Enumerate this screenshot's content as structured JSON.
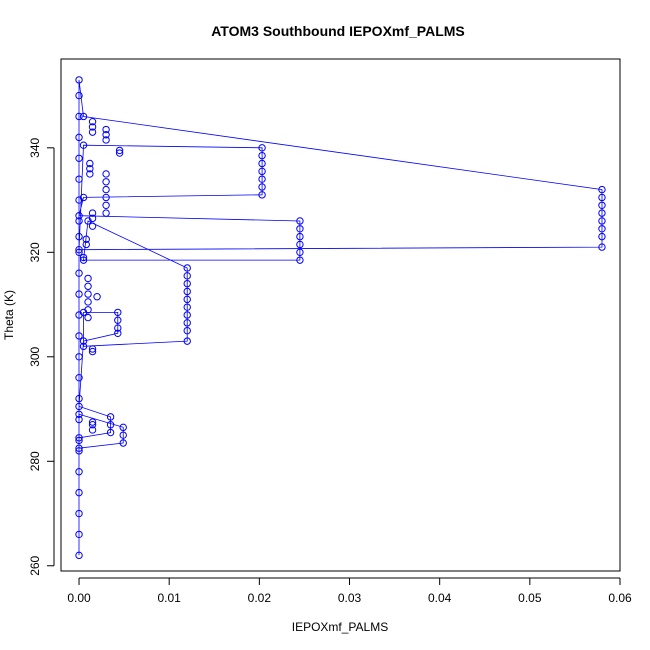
{
  "chart_data": {
    "type": "scatter",
    "title": "ATOM3 Southbound IEPOXmf_PALMS",
    "xlabel": "IEPOXmf_PALMS",
    "ylabel": "Theta (K)",
    "xlim": [
      -0.002,
      0.06
    ],
    "ylim": [
      259,
      357
    ],
    "x_ticks": [
      0.0,
      0.01,
      0.02,
      0.03,
      0.04,
      0.05,
      0.06
    ],
    "x_tick_labels": [
      "0.00",
      "0.01",
      "0.02",
      "0.03",
      "0.04",
      "0.05",
      "0.06"
    ],
    "y_ticks": [
      260,
      280,
      300,
      320,
      340
    ],
    "y_tick_labels": [
      "260",
      "280",
      "300",
      "320",
      "340"
    ],
    "grid": false,
    "legend": "none",
    "series": [
      {
        "color": "#0000ff",
        "marker": "open-circle",
        "line": "connected",
        "points": [
          [
            0.0,
            262
          ],
          [
            0.0,
            266
          ],
          [
            0.0,
            270
          ],
          [
            0.0,
            274
          ],
          [
            0.0,
            278
          ],
          [
            0.0,
            282
          ],
          [
            0.0,
            284
          ],
          [
            0.0,
            288
          ],
          [
            0.0,
            292
          ],
          [
            0.0,
            296
          ],
          [
            0.0,
            300
          ],
          [
            0.0,
            304
          ],
          [
            0.0,
            308
          ],
          [
            0.0,
            312
          ],
          [
            0.0,
            316
          ],
          [
            0.0,
            320
          ],
          [
            0.0,
            323
          ],
          [
            0.0,
            326
          ],
          [
            0.0,
            330
          ],
          [
            0.0,
            334
          ],
          [
            0.0,
            338
          ],
          [
            0.0,
            342
          ],
          [
            0.0,
            346
          ],
          [
            0.0,
            350
          ],
          [
            0.0,
            353
          ],
          [
            0.0005,
            346
          ],
          [
            0.058,
            332
          ],
          [
            0.058,
            330.5
          ],
          [
            0.058,
            329
          ],
          [
            0.058,
            327.5
          ],
          [
            0.058,
            326
          ],
          [
            0.058,
            324.5
          ],
          [
            0.058,
            323
          ],
          [
            0.058,
            321
          ],
          [
            0.0,
            320.5
          ],
          [
            0.0005,
            340.5
          ],
          [
            0.0203,
            340
          ],
          [
            0.0203,
            338.5
          ],
          [
            0.0203,
            337
          ],
          [
            0.0203,
            335.5
          ],
          [
            0.0203,
            334
          ],
          [
            0.0203,
            332.5
          ],
          [
            0.0203,
            331
          ],
          [
            0.0005,
            330.5
          ],
          [
            0.0,
            327
          ],
          [
            0.0245,
            326
          ],
          [
            0.0245,
            324.5
          ],
          [
            0.0245,
            323
          ],
          [
            0.0245,
            321.5
          ],
          [
            0.0245,
            320
          ],
          [
            0.0245,
            318.5
          ],
          [
            0.0005,
            318.5
          ],
          [
            0.001,
            326
          ],
          [
            0.012,
            317
          ],
          [
            0.012,
            315.5
          ],
          [
            0.012,
            314
          ],
          [
            0.012,
            312.5
          ],
          [
            0.012,
            311
          ],
          [
            0.012,
            309.5
          ],
          [
            0.012,
            308
          ],
          [
            0.012,
            306.5
          ],
          [
            0.012,
            305
          ],
          [
            0.012,
            303
          ],
          [
            0.0005,
            302
          ],
          [
            0.0005,
            308.5
          ],
          [
            0.0043,
            308.5
          ],
          [
            0.0043,
            307
          ],
          [
            0.0043,
            305.5
          ],
          [
            0.0043,
            304.5
          ],
          [
            0.0005,
            303
          ],
          [
            0.0,
            290.5
          ],
          [
            0.0035,
            288.5
          ],
          [
            0.0035,
            287
          ],
          [
            0.0035,
            285.5
          ],
          [
            0.0,
            284.5
          ],
          [
            0.0,
            282.5
          ],
          [
            0.0049,
            283.5
          ],
          [
            0.0049,
            285
          ],
          [
            0.0049,
            286.5
          ],
          [
            0.0,
            289
          ]
        ]
      }
    ],
    "extra_points": [
      [
        0.0015,
        345
      ],
      [
        0.0015,
        344
      ],
      [
        0.0015,
        343
      ],
      [
        0.003,
        343.5
      ],
      [
        0.003,
        342.5
      ],
      [
        0.003,
        341.5
      ],
      [
        0.0045,
        339
      ],
      [
        0.0045,
        339.5
      ],
      [
        0.0012,
        337
      ],
      [
        0.0012,
        336
      ],
      [
        0.0012,
        335
      ],
      [
        0.003,
        335
      ],
      [
        0.003,
        333.5
      ],
      [
        0.003,
        332
      ],
      [
        0.003,
        330.5
      ],
      [
        0.003,
        329
      ],
      [
        0.003,
        327.5
      ],
      [
        0.0015,
        327.5
      ],
      [
        0.0015,
        326.5
      ],
      [
        0.0015,
        325
      ],
      [
        0.0008,
        322.5
      ],
      [
        0.0008,
        321.5
      ],
      [
        0.0005,
        319
      ],
      [
        0.001,
        315
      ],
      [
        0.001,
        313.5
      ],
      [
        0.001,
        312
      ],
      [
        0.001,
        310.5
      ],
      [
        0.001,
        309
      ],
      [
        0.001,
        307.5
      ],
      [
        0.002,
        311.5
      ],
      [
        0.0015,
        301
      ],
      [
        0.0015,
        301.5
      ],
      [
        0.0015,
        287
      ],
      [
        0.0015,
        286
      ],
      [
        0.0015,
        287.5
      ]
    ]
  }
}
